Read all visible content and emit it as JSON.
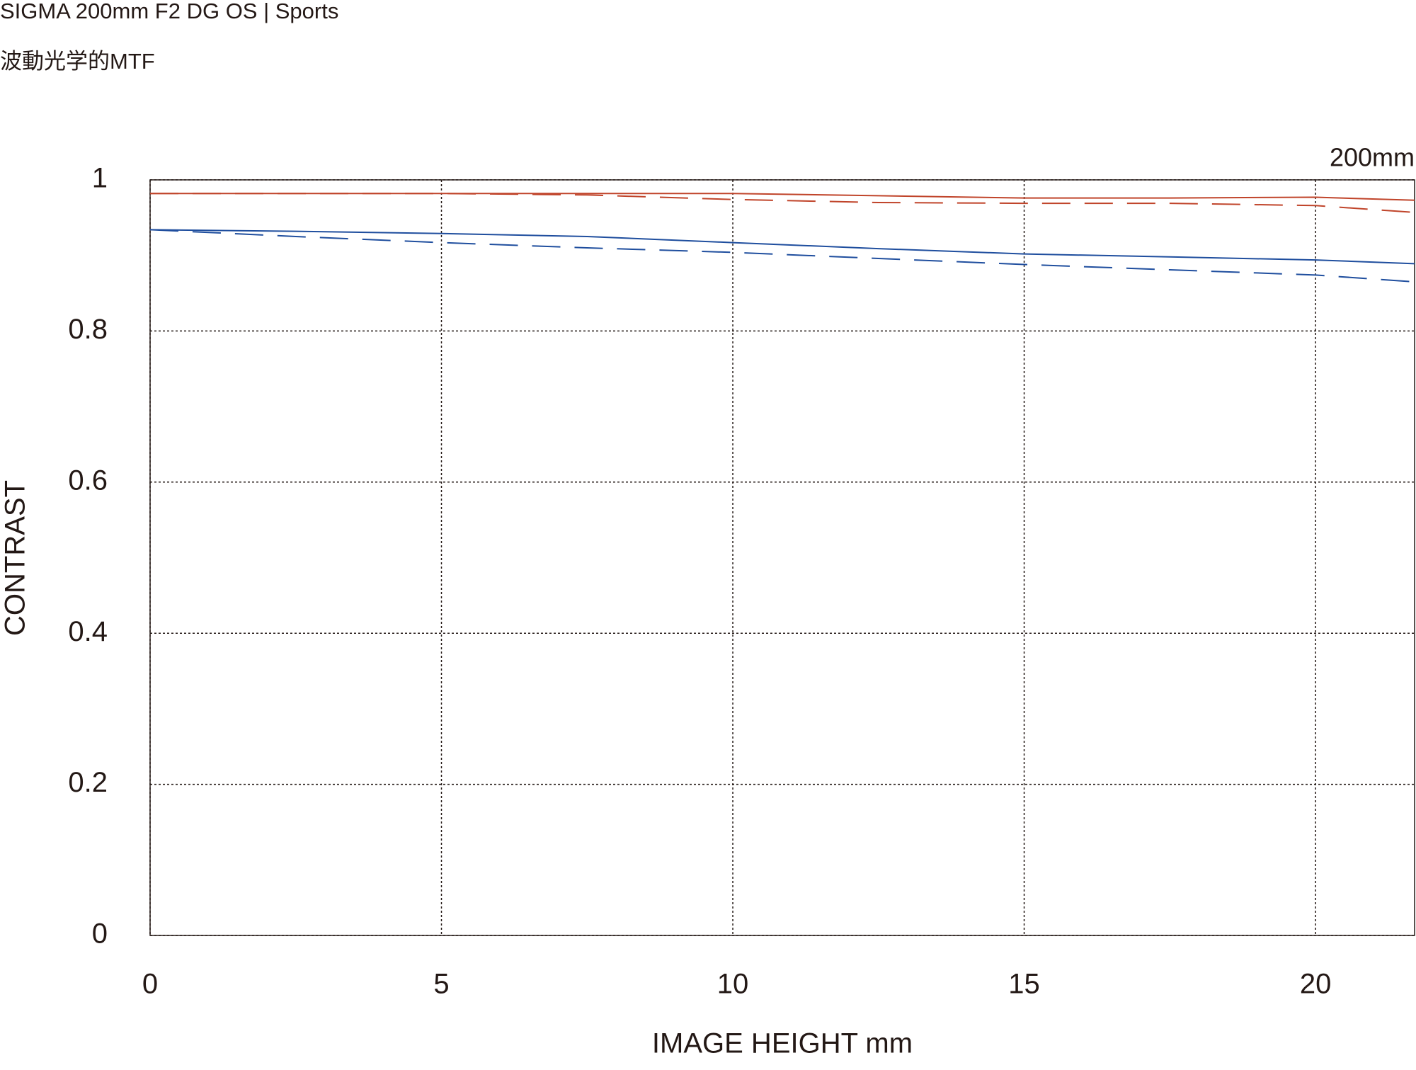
{
  "chart_data": {
    "type": "line",
    "title": "SIGMA 200mm F2 DG OS | Sports",
    "subtitle": "波動光学的MTF",
    "annotation": "200mm",
    "xlabel": "IMAGE HEIGHT  mm",
    "ylabel": "CONTRAST",
    "x": [
      0,
      2.5,
      5,
      7.5,
      10,
      12.5,
      15,
      17.5,
      20,
      21.7
    ],
    "series": [
      {
        "color": "#c0442a",
        "dashed": false,
        "values": [
          0.982,
          0.982,
          0.982,
          0.982,
          0.982,
          0.979,
          0.976,
          0.976,
          0.977,
          0.973
        ]
      },
      {
        "color": "#c0442a",
        "dashed": true,
        "values": [
          0.982,
          0.982,
          0.982,
          0.98,
          0.974,
          0.97,
          0.969,
          0.969,
          0.966,
          0.957
        ]
      },
      {
        "color": "#1f4e9e",
        "dashed": false,
        "values": [
          0.934,
          0.932,
          0.929,
          0.925,
          0.917,
          0.909,
          0.902,
          0.898,
          0.894,
          0.889
        ]
      },
      {
        "color": "#1f4e9e",
        "dashed": true,
        "values": [
          0.934,
          0.925,
          0.917,
          0.91,
          0.904,
          0.896,
          0.888,
          0.881,
          0.874,
          0.865
        ]
      }
    ],
    "xlim": [
      0,
      21.7
    ],
    "xticks": [
      0,
      5,
      10,
      15,
      20
    ],
    "ylim": [
      0,
      1
    ],
    "yticks": [
      0,
      0.2,
      0.4,
      0.6,
      0.8,
      1
    ],
    "grid": true
  }
}
